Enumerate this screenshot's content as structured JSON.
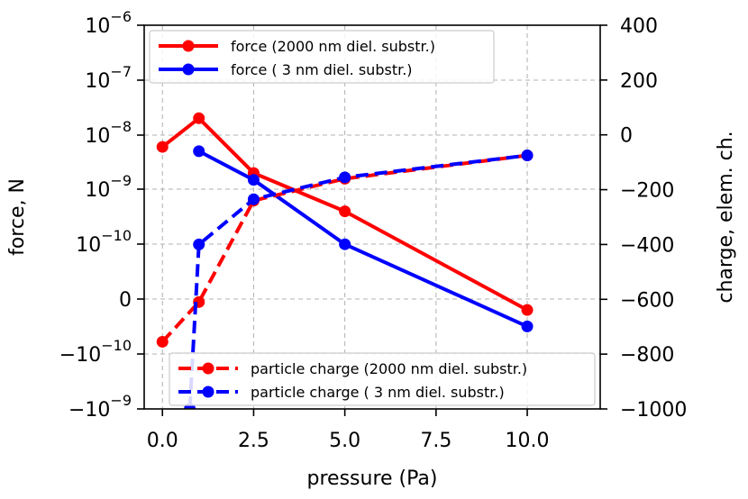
{
  "chart_data": {
    "type": "line",
    "x_axis": {
      "label": "pressure (Pa)",
      "range": [
        -0.5,
        12
      ],
      "ticks": [
        0,
        2.5,
        5,
        7.5,
        10
      ],
      "tick_labels": [
        "0.0",
        "2.5",
        "5.0",
        "7.5",
        "10.0"
      ]
    },
    "y_left": {
      "label": "force, N",
      "scale": "symlog (linthresh 1e-10)",
      "ticks": [
        {
          "label_base": "10",
          "label_exp": "−6"
        },
        {
          "label_base": "10",
          "label_exp": "−7"
        },
        {
          "label_base": "10",
          "label_exp": "−8"
        },
        {
          "label_base": "10",
          "label_exp": "−9"
        },
        {
          "label_base": "10",
          "label_exp": "−10"
        },
        {
          "label_base": "0",
          "label_exp": ""
        },
        {
          "label_base": "−10",
          "label_exp": "−10"
        },
        {
          "label_base": "−10",
          "label_exp": "−9"
        }
      ]
    },
    "y_right": {
      "label": "charge, elem. ch.",
      "range": [
        -1000,
        400
      ],
      "ticks": [
        400,
        200,
        0,
        -200,
        -400,
        -600,
        -800,
        -1000
      ],
      "tick_labels": [
        "400",
        "200",
        "0",
        "−200",
        "−400",
        "−600",
        "−800",
        "−1000"
      ]
    },
    "force_series": [
      {
        "name": "force (2000 nm diel. substr.)",
        "color": "#ff0000",
        "axis": "left",
        "x": [
          0,
          1,
          2.5,
          5,
          10
        ],
        "y": [
          6e-09,
          2e-08,
          2e-09,
          4e-10,
          -2e-11
        ]
      },
      {
        "name": "force (   3 nm diel. substr.)",
        "color": "#0000ff",
        "axis": "left",
        "x": [
          1,
          2.5,
          5,
          10
        ],
        "y": [
          5e-09,
          1.5e-09,
          1e-10,
          -5e-11
        ]
      }
    ],
    "charge_series": [
      {
        "name": "particle charge (2000 nm diel. substr.)",
        "color": "#ff0000",
        "axis": "right",
        "x": [
          0,
          1,
          2.5,
          5,
          10
        ],
        "y": [
          -755,
          -610,
          -240,
          -160,
          -75
        ]
      },
      {
        "name": "particle charge (   3 nm diel. substr.)",
        "color": "#0000ff",
        "axis": "right",
        "x": [
          0.75,
          1,
          2.5,
          5,
          10
        ],
        "y": [
          -1000,
          -400,
          -235,
          -155,
          -75
        ]
      }
    ]
  }
}
